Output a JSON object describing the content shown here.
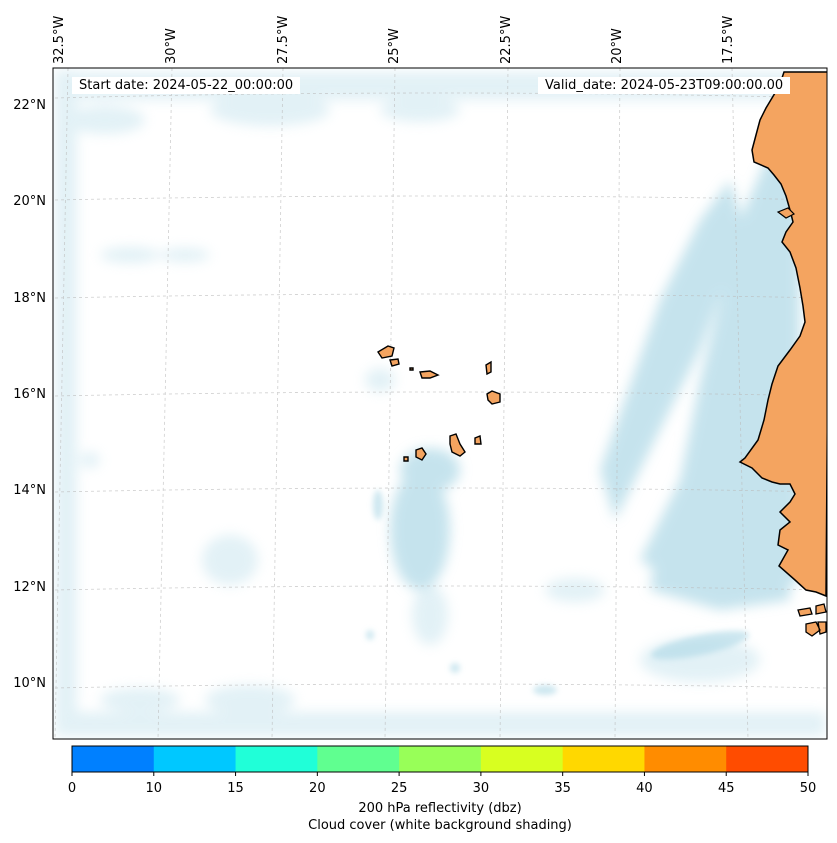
{
  "map": {
    "lon_labels": [
      "32.5°W",
      "30°W",
      "27.5°W",
      "25°W",
      "22.5°W",
      "20°W",
      "17.5°W"
    ],
    "lat_labels": [
      "22°N",
      "20°N",
      "18°N",
      "16°N",
      "14°N",
      "12°N",
      "10°N"
    ],
    "start_date": "Start date: 2024-05-22_00:00:00",
    "valid_date": "Valid_date: 2024-05-23T09:00:00.00",
    "land_color": "#f4a460",
    "cloud_color": "#add8e6",
    "gridlines": true
  },
  "colorbar": {
    "colors": [
      "#0080ff",
      "#00c8ff",
      "#20ffd8",
      "#60ff90",
      "#98ff58",
      "#d8ff20",
      "#ffd800",
      "#ff8c00",
      "#ff4c00"
    ],
    "ticks": [
      "0",
      "10",
      "15",
      "20",
      "25",
      "30",
      "35",
      "40",
      "45",
      "50"
    ],
    "label": "200 hPa reflectivity (dbz)",
    "sublabel": "Cloud cover (white background shading)"
  }
}
